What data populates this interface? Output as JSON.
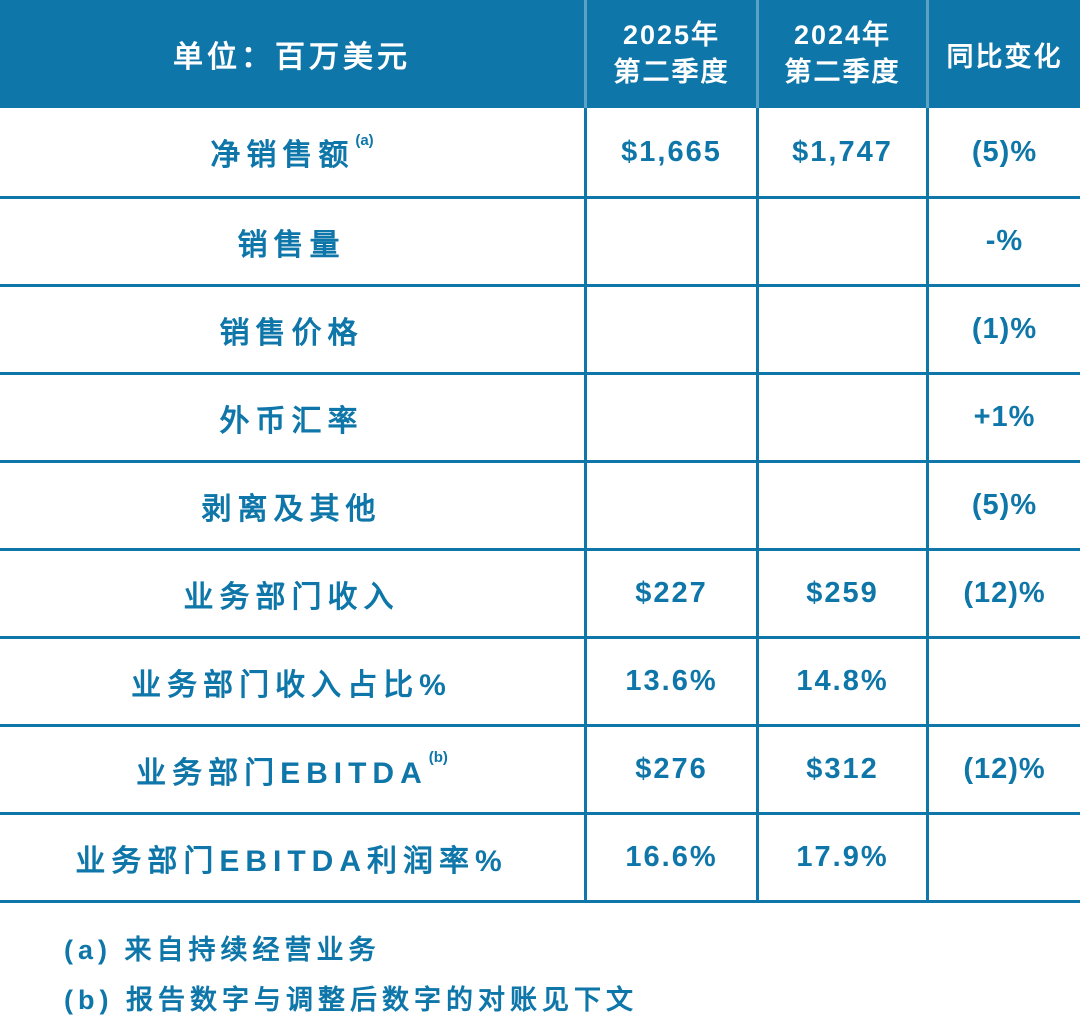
{
  "colors": {
    "header_bg": "#0e76a8",
    "header_text": "#ffffff",
    "body_text": "#0e76a8",
    "grid_lines": "#0e76a8",
    "background": "#ffffff"
  },
  "chart_data": {
    "type": "table",
    "title": "单位：百万美元",
    "unit_label": "单位：百万美元",
    "col_headers": [
      {
        "line1": "2025年",
        "line2": "第二季度"
      },
      {
        "line1": "2024年",
        "line2": "第二季度"
      },
      {
        "line1": "同比变化",
        "line2": ""
      }
    ],
    "rows": [
      {
        "label": "净销售额",
        "sup": "(a)",
        "q2_2025": "$1,665",
        "q2_2024": "$1,747",
        "yoy_change": "(5)%"
      },
      {
        "label": "销售量",
        "sup": "",
        "q2_2025": "",
        "q2_2024": "",
        "yoy_change": "-%"
      },
      {
        "label": "销售价格",
        "sup": "",
        "q2_2025": "",
        "q2_2024": "",
        "yoy_change": "(1)%"
      },
      {
        "label": "外币汇率",
        "sup": "",
        "q2_2025": "",
        "q2_2024": "",
        "yoy_change": "+1%"
      },
      {
        "label": "剥离及其他",
        "sup": "",
        "q2_2025": "",
        "q2_2024": "",
        "yoy_change": "(5)%"
      },
      {
        "label": "业务部门收入",
        "sup": "",
        "q2_2025": "$227",
        "q2_2024": "$259",
        "yoy_change": "(12)%"
      },
      {
        "label": "业务部门收入占比%",
        "sup": "",
        "q2_2025": "13.6%",
        "q2_2024": "14.8%",
        "yoy_change": ""
      },
      {
        "label": "业务部门EBITDA",
        "sup": "(b)",
        "q2_2025": "$276",
        "q2_2024": "$312",
        "yoy_change": "(12)%"
      },
      {
        "label": "业务部门EBITDA利润率%",
        "sup": "",
        "q2_2025": "16.6%",
        "q2_2024": "17.9%",
        "yoy_change": ""
      }
    ],
    "footnotes": [
      "(a) 来自持续经营业务",
      "(b) 报告数字与调整后数字的对账见下文"
    ]
  }
}
